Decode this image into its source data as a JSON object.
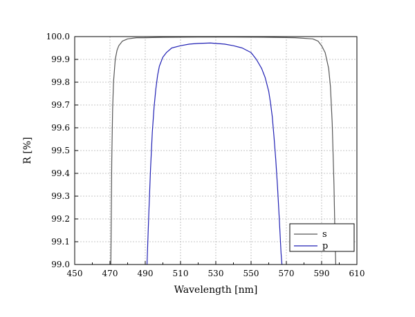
{
  "chart_data": {
    "type": "line",
    "xlabel": "Wavelength [nm]",
    "ylabel": "R [%]",
    "xlim": [
      450,
      610
    ],
    "ylim": [
      99.0,
      100.0
    ],
    "xticks": [
      450,
      470,
      490,
      510,
      530,
      550,
      570,
      590,
      610
    ],
    "yticks": [
      99.0,
      99.1,
      99.2,
      99.3,
      99.4,
      99.5,
      99.6,
      99.7,
      99.8,
      99.9,
      100.0
    ],
    "xtick_labels": [
      "450",
      "470",
      "490",
      "510",
      "530",
      "550",
      "570",
      "590",
      "610"
    ],
    "ytick_labels": [
      "99.0",
      "99.1",
      "99.2",
      "99.3",
      "99.4",
      "99.5",
      "99.6",
      "99.7",
      "99.8",
      "99.9",
      "100.0"
    ],
    "grid": true,
    "legend_position": "bottom-right",
    "series": [
      {
        "name": "s",
        "color": "#555555",
        "x": [
          470.5,
          471.0,
          471.5,
          472.0,
          473.0,
          474.0,
          475.0,
          477.0,
          480.0,
          485.0,
          490.0,
          500.0,
          520.0,
          540.0,
          560.0,
          575.0,
          585.0,
          588.0,
          590.0,
          592.0,
          594.0,
          595.0,
          596.0,
          597.0,
          597.5,
          598.0
        ],
        "y": [
          99.0,
          99.45,
          99.68,
          99.8,
          99.9,
          99.94,
          99.96,
          99.98,
          99.99,
          99.995,
          99.995,
          99.997,
          99.998,
          99.998,
          99.997,
          99.995,
          99.99,
          99.98,
          99.96,
          99.93,
          99.86,
          99.78,
          99.62,
          99.35,
          99.15,
          99.0
        ]
      },
      {
        "name": "p",
        "color": "#1f1fb4",
        "x": [
          491.0,
          492.0,
          493.0,
          494.0,
          495.0,
          496.0,
          497.0,
          498.0,
          500.0,
          502.0,
          505.0,
          510.0,
          515.0,
          520.0,
          527.0,
          535.0,
          540.0,
          545.0,
          550.0,
          553.0,
          556.0,
          558.0,
          560.0,
          561.0,
          562.0,
          563.0,
          564.0,
          565.0,
          566.0,
          567.0,
          567.5
        ],
        "y": [
          99.0,
          99.22,
          99.42,
          99.58,
          99.69,
          99.77,
          99.83,
          99.87,
          99.91,
          99.93,
          99.95,
          99.96,
          99.967,
          99.97,
          99.972,
          99.967,
          99.96,
          99.95,
          99.93,
          99.9,
          99.86,
          99.82,
          99.76,
          99.71,
          99.65,
          99.56,
          99.46,
          99.34,
          99.2,
          99.05,
          99.0
        ]
      }
    ]
  }
}
